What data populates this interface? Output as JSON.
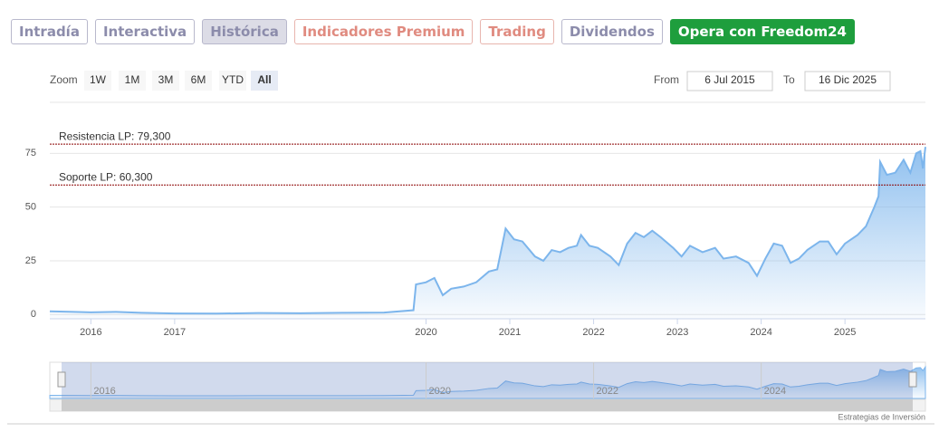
{
  "tabs": [
    "Intradía",
    "Interactiva",
    "Histórica",
    "Indicadores Premium",
    "Trading",
    "Dividendos",
    "Opera con Freedom24"
  ],
  "zoom": {
    "label": "Zoom",
    "buttons": [
      "1W",
      "1M",
      "3M",
      "6M",
      "YTD",
      "All"
    ]
  },
  "range": {
    "from_label": "From",
    "from": "6 Jul 2015",
    "to_label": "To",
    "to": "16 Dic 2025"
  },
  "credits": "Estrategias de Inversión",
  "chart_data": {
    "type": "area",
    "color": "#7cb5ec",
    "x": [
      2015.51,
      2015.8,
      2016.0,
      2016.3,
      2016.6,
      2017.0,
      2017.5,
      2018.0,
      2018.5,
      2019.0,
      2019.5,
      2019.85,
      2019.88,
      2020.0,
      2020.1,
      2020.2,
      2020.3,
      2020.45,
      2020.6,
      2020.75,
      2020.85,
      2020.95,
      2021.05,
      2021.15,
      2021.3,
      2021.4,
      2021.5,
      2021.6,
      2021.7,
      2021.8,
      2021.85,
      2021.95,
      2022.05,
      2022.2,
      2022.3,
      2022.4,
      2022.5,
      2022.6,
      2022.7,
      2022.8,
      2022.95,
      2023.05,
      2023.15,
      2023.3,
      2023.45,
      2023.55,
      2023.7,
      2023.85,
      2023.95,
      2024.05,
      2024.15,
      2024.25,
      2024.35,
      2024.45,
      2024.55,
      2024.7,
      2024.8,
      2024.9,
      2025.0,
      2025.15,
      2025.25,
      2025.35,
      2025.4,
      2025.42,
      2025.5,
      2025.6,
      2025.7,
      2025.78,
      2025.85,
      2025.9,
      2025.93,
      2025.96
    ],
    "values": [
      1.5,
      1.2,
      1,
      1.2,
      0.8,
      0.5,
      0.4,
      0.7,
      0.6,
      0.8,
      0.9,
      2,
      14,
      15,
      17,
      9,
      12,
      13,
      15,
      20,
      21,
      40,
      35,
      34,
      27,
      25,
      30,
      29,
      31,
      32,
      37,
      32,
      31,
      27,
      23,
      33,
      38,
      36,
      39,
      36,
      31,
      27,
      32,
      29,
      31,
      26,
      27,
      24,
      18,
      26,
      33,
      32,
      24,
      26,
      30,
      34,
      34,
      28,
      33,
      37,
      41,
      50,
      55,
      71,
      65,
      66,
      72,
      66,
      75,
      76,
      68,
      78
    ],
    "xlim": [
      2015.51,
      2025.96
    ],
    "xticks": [
      2016,
      2017,
      2020,
      2021,
      2022,
      2023,
      2024,
      2025
    ],
    "ylim": [
      -2,
      100
    ],
    "yticks": [
      0,
      25,
      50,
      75
    ],
    "grid": true,
    "plot_lines": [
      {
        "label": "Resistencia LP: 79,300",
        "value": 79.3
      },
      {
        "label": "Soporte LP: 60,300",
        "value": 60.3
      }
    ],
    "navigator_xticks": [
      2016,
      2020,
      2022,
      2024
    ]
  }
}
